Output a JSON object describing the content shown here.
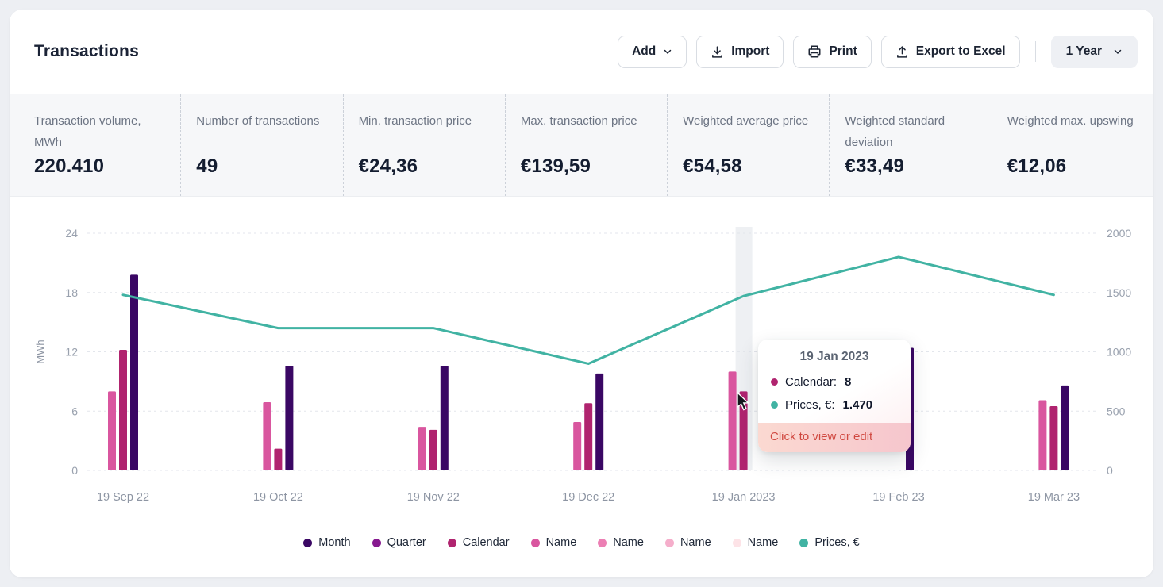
{
  "header": {
    "title": "Transactions",
    "toolbar": {
      "add_label": "Add",
      "import_label": "Import",
      "print_label": "Print",
      "export_label": "Export to Excel",
      "range_label": "1 Year"
    },
    "icons": [
      "chevron-down",
      "download",
      "printer",
      "upload",
      "chevron-down"
    ]
  },
  "stats": {
    "items": [
      {
        "label": "Transaction volume, MWh",
        "value": "220.410"
      },
      {
        "label": "Number of transactions",
        "value": "49"
      },
      {
        "label": "Min. transaction price",
        "value": "€24,36"
      },
      {
        "label": "Max. transaction price",
        "value": "€139,59"
      },
      {
        "label": "Weighted average price",
        "value": "€54,58"
      },
      {
        "label": "Weighted standard deviation",
        "value": "€33,49"
      },
      {
        "label": "Weighted max. upswing",
        "value": "€12,06"
      }
    ]
  },
  "chart_data": {
    "type": "bar",
    "subtype": "combo-bar-line",
    "categories": [
      "19 Sep 22",
      "19 Oct 22",
      "19 Nov 22",
      "19 Dec 22",
      "19 Jan 2023",
      "19 Feb 23",
      "19 Mar 23"
    ],
    "bar_series": [
      {
        "name": "Name",
        "color": "#d9569f",
        "values": [
          8,
          6.9,
          4.4,
          4.9,
          10,
          null,
          7.1
        ]
      },
      {
        "name": "Calendar",
        "color": "#b0246f",
        "values": [
          12.2,
          2.2,
          4.1,
          6.8,
          8,
          null,
          6.5
        ]
      },
      {
        "name": "Month",
        "color": "#3a0764",
        "values": [
          19.8,
          10.6,
          10.6,
          9.8,
          null,
          12.4,
          8.6
        ]
      }
    ],
    "line_series": {
      "name": "Prices, €",
      "color": "#41b3a3",
      "values": [
        1480,
        1200,
        1200,
        900,
        1470,
        1800,
        1480
      ]
    },
    "ylabel_left": "MWh",
    "yticks_left": [
      0,
      6,
      12,
      18,
      24
    ],
    "ylim_left": [
      0,
      24
    ],
    "yticks_right": [
      0,
      500,
      1000,
      1500,
      2000
    ],
    "ylim_right": [
      0,
      2000
    ],
    "grid": true,
    "legend_position": "bottom",
    "hover_index": 4,
    "legend": [
      {
        "label": "Month",
        "color": "#3a0764"
      },
      {
        "label": "Quarter",
        "color": "#86198f"
      },
      {
        "label": "Calendar",
        "color": "#b0246f"
      },
      {
        "label": "Name",
        "color": "#d9569f"
      },
      {
        "label": "Name",
        "color": "#ec7fb4"
      },
      {
        "label": "Name",
        "color": "#f5aecb"
      },
      {
        "label": "Name",
        "color": "#fde3e7"
      },
      {
        "label": "Prices, €",
        "color": "#41b3a3"
      }
    ]
  },
  "tooltip": {
    "title": "19 Jan 2023",
    "rows": [
      {
        "dot_color": "#b0246f",
        "label": "Calendar:",
        "value": "8"
      },
      {
        "dot_color": "#41b3a3",
        "label": "Prices, €:",
        "value": "1.470"
      }
    ],
    "footer": "Click to view or edit"
  }
}
